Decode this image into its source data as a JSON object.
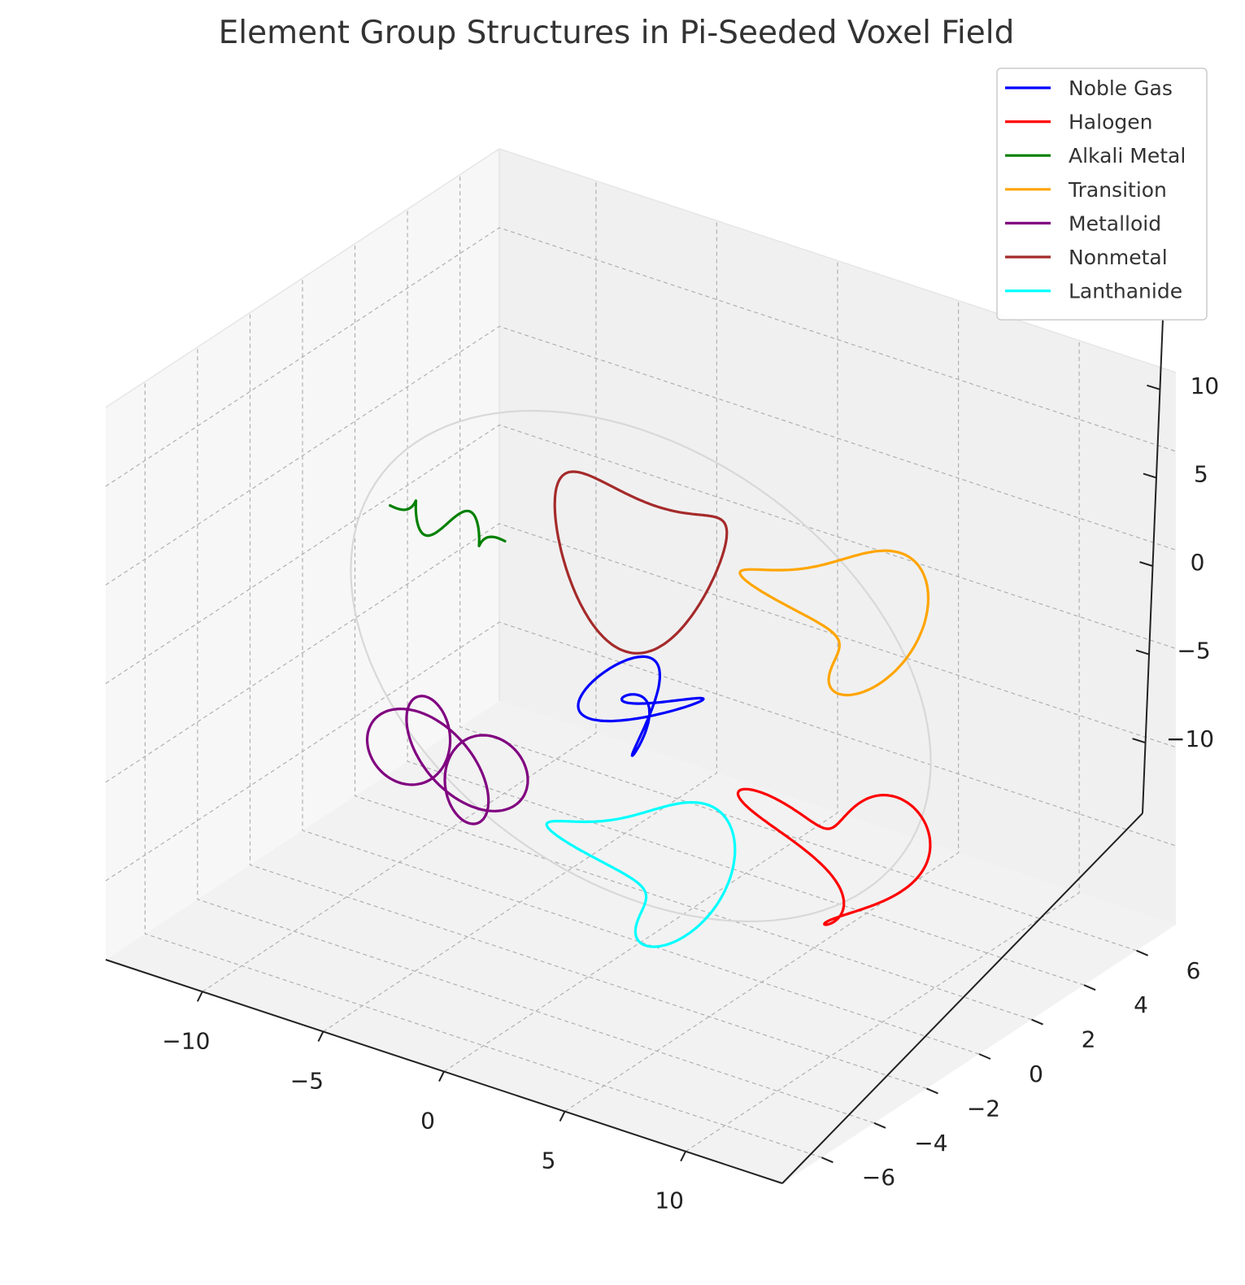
{
  "chart_data": {
    "type": "line",
    "projection": "3d",
    "title": "Element Group Structures in Pi-Seeded Voxel Field",
    "xlim": [
      -14,
      14
    ],
    "ylim": [
      -7.5,
      7.5
    ],
    "zlim": [
      -14,
      14
    ],
    "x_ticks": [
      -10,
      -5,
      0,
      5,
      10
    ],
    "y_ticks": [
      -6,
      -4,
      -2,
      0,
      2,
      4,
      6
    ],
    "z_ticks": [
      -10,
      -5,
      0,
      5,
      10
    ],
    "x_tick_labels": [
      "−10",
      "−5",
      "0",
      "5",
      "10"
    ],
    "y_tick_labels": [
      "−6",
      "−4",
      "−2",
      "0",
      "2",
      "4",
      "6"
    ],
    "z_tick_labels": [
      "−10",
      "−5",
      "0",
      "5",
      "10"
    ],
    "grid": true,
    "legend_position": "top-right",
    "series": [
      {
        "name": "Noble Gas",
        "color": "#0000ff",
        "shape": "trefoil",
        "center": [
          0,
          0,
          -2
        ],
        "size": 2.5
      },
      {
        "name": "Halogen",
        "color": "#ff0000",
        "shape": "heart",
        "center": [
          8,
          0,
          -6
        ],
        "size": 3.5
      },
      {
        "name": "Alkali Metal",
        "color": "#008000",
        "shape": "wave",
        "center": [
          -8,
          0,
          4
        ],
        "size": 2.5
      },
      {
        "name": "Transition",
        "color": "#ffa500",
        "shape": "ring",
        "center": [
          8,
          0,
          6
        ],
        "size": 3
      },
      {
        "name": "Metalloid",
        "color": "#800080",
        "shape": "lobes",
        "center": [
          -8,
          0,
          -8
        ],
        "size": 3
      },
      {
        "name": "Nonmetal",
        "color": "#a52a2a",
        "shape": "saddle",
        "center": [
          0,
          0,
          6
        ],
        "size": 3.5
      },
      {
        "name": "Lanthanide",
        "color": "#00ffff",
        "shape": "ring",
        "center": [
          0,
          0,
          -10
        ],
        "size": 3
      }
    ],
    "boundary_circle": {
      "color": "#d8d8d8"
    }
  }
}
